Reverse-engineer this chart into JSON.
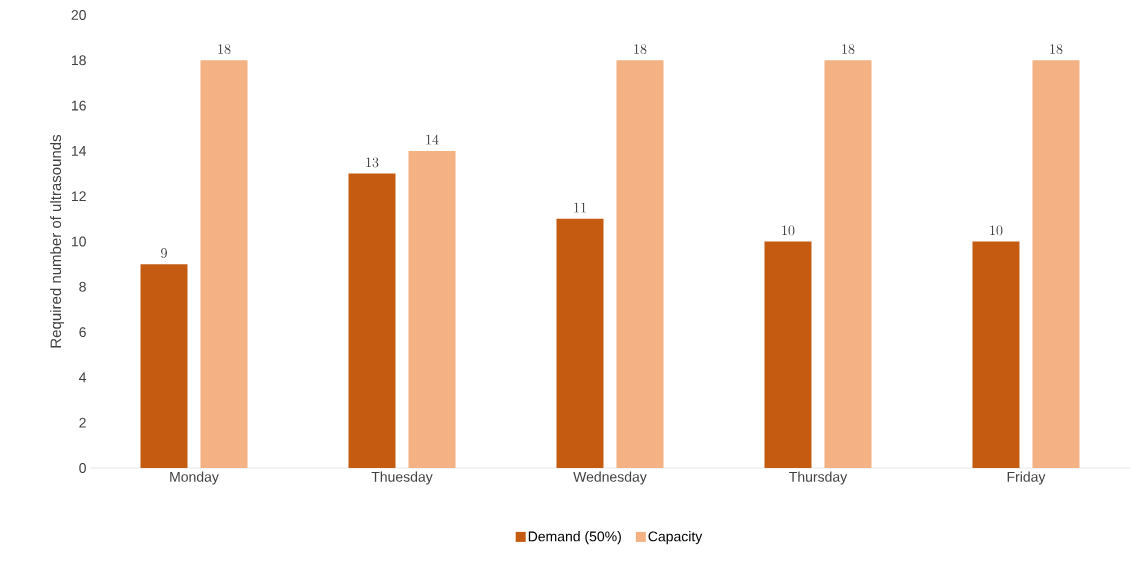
{
  "chart_data": {
    "type": "bar",
    "ylabel": "Required number of ultrasounds",
    "categories": [
      "Monday",
      "Thuesday",
      "Wednesday",
      "Thursday",
      "Friday"
    ],
    "series": [
      {
        "name": "Demand (50%)",
        "color": "#c55a11",
        "values": [
          9,
          13,
          11,
          10,
          10
        ]
      },
      {
        "name": "Capacity",
        "color": "#f4b183",
        "values": [
          18,
          14,
          18,
          18,
          18
        ]
      }
    ],
    "ylim": [
      0,
      20
    ],
    "yticks": [
      0,
      2,
      4,
      6,
      8,
      10,
      12,
      14,
      16,
      18,
      20
    ],
    "data_labels": true,
    "legend": "bottom"
  }
}
